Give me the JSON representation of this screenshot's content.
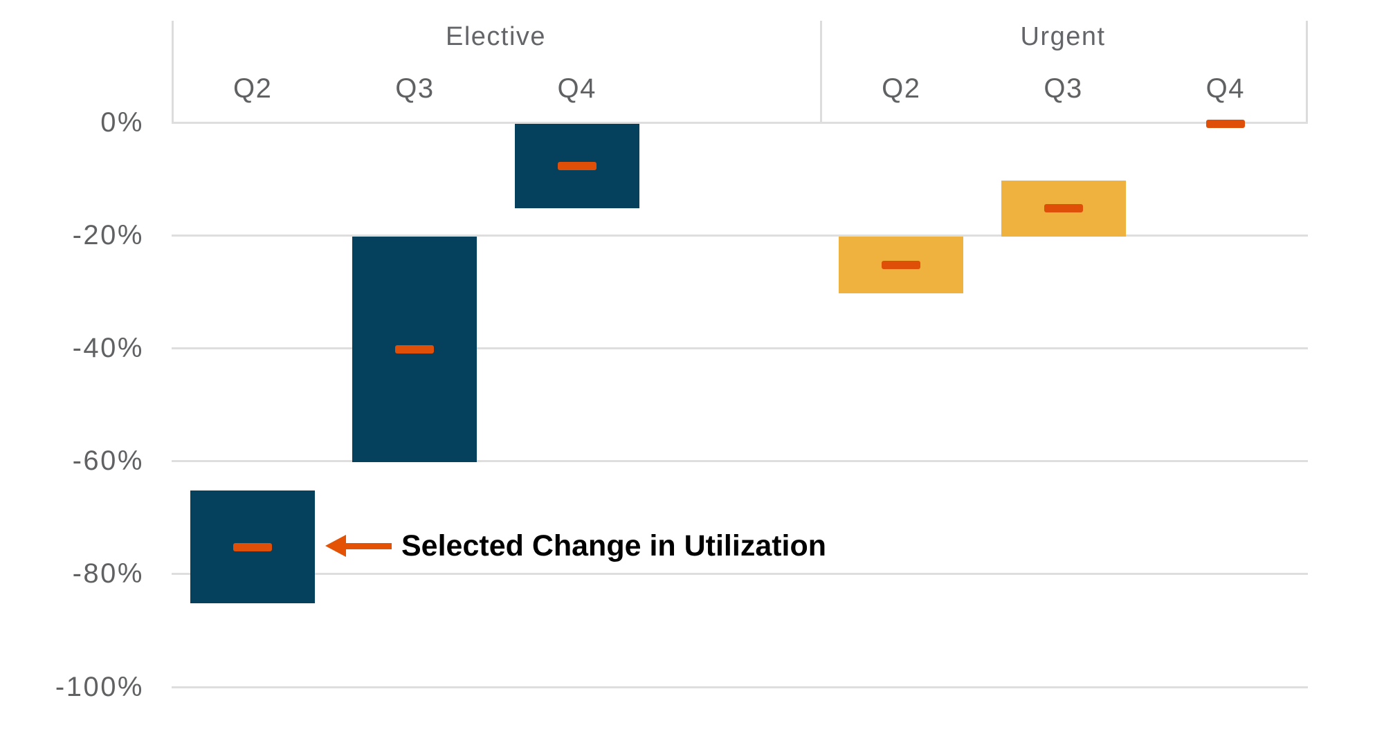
{
  "chart_data": {
    "type": "floating-bar",
    "title": "",
    "y_axis": {
      "ticks": [
        "0%",
        "-20%",
        "-40%",
        "-60%",
        "-80%",
        "-100%"
      ],
      "tick_values": [
        0,
        -20,
        -40,
        -60,
        -80,
        -100
      ],
      "min": -100,
      "max": 0,
      "unit": "%",
      "grid": true
    },
    "groups": [
      {
        "label": "Elective",
        "color": "#05405c",
        "bars": [
          {
            "quarter": "Q2",
            "range_high": -65,
            "range_low": -85,
            "selected": -75
          },
          {
            "quarter": "Q3",
            "range_high": -20,
            "range_low": -60,
            "selected": -40
          },
          {
            "quarter": "Q4",
            "range_high": 0,
            "range_low": -15,
            "selected": -7.5
          }
        ]
      },
      {
        "label": "Urgent",
        "color": "#efb23e",
        "bars": [
          {
            "quarter": "Q2",
            "range_high": -20,
            "range_low": -30,
            "selected": -25
          },
          {
            "quarter": "Q3",
            "range_high": -10,
            "range_low": -20,
            "selected": -15
          },
          {
            "quarter": "Q4",
            "range_high": 0,
            "range_low": 0,
            "selected": 0
          }
        ]
      }
    ],
    "annotation": {
      "text": "Selected Change in Utilization",
      "arrow_color": "#e35205",
      "points_to": {
        "group": "Elective",
        "quarter": "Q2"
      }
    },
    "colors": {
      "elective_bar": "#05405c",
      "urgent_bar": "#efb23e",
      "selected_marker": "#e04f08",
      "gridline": "#dedede",
      "label_text": "#5f6163",
      "annotation_text": "#000000"
    }
  }
}
